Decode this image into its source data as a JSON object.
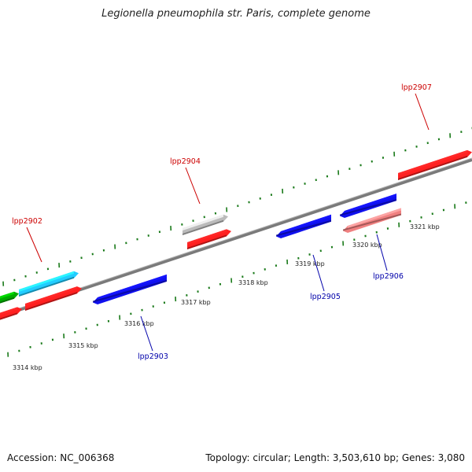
{
  "title": "Legionella pneumophila str. Paris, complete genome",
  "footer": {
    "accession": "Accession: NC_006368",
    "summary": "Topology: circular; Length: 3,503,610 bp; Genes: 3,080"
  },
  "colors": {
    "forward_label": "#cc0000",
    "reverse_label": "#0000aa",
    "tick": "#1a7a1a",
    "backbone": "#7a7a7a"
  },
  "scale_labels": [
    "3314 kbp",
    "3315 kbp",
    "3316 kbp",
    "3317 kbp",
    "3318 kbp",
    "3319 kbp",
    "3320 kbp",
    "3321 kbp"
  ],
  "gene_labels": [
    {
      "text": "lpp2902",
      "strand": "forward"
    },
    {
      "text": "lpp2904",
      "strand": "forward"
    },
    {
      "text": "lpp2907",
      "strand": "forward"
    },
    {
      "text": "lpp2903",
      "strand": "reverse"
    },
    {
      "text": "lpp2905",
      "strand": "reverse"
    },
    {
      "text": "lpp2906",
      "strand": "reverse"
    }
  ],
  "genes": [
    {
      "color": "#00aa00",
      "strand": "forward",
      "row": "outer"
    },
    {
      "color": "#22ccff",
      "strand": "forward",
      "row": "outer"
    },
    {
      "color": "#bbbbbb",
      "strand": "forward",
      "row": "outer"
    },
    {
      "color": "#ff2020",
      "strand": "forward",
      "row": "inner"
    },
    {
      "color": "#ff2020",
      "strand": "forward",
      "row": "inner"
    },
    {
      "color": "#ff2020",
      "strand": "forward",
      "row": "inner"
    },
    {
      "color": "#ff2020",
      "strand": "forward",
      "row": "inner"
    },
    {
      "color": "#1010ee",
      "strand": "reverse",
      "row": "inner"
    },
    {
      "color": "#1010ee",
      "strand": "reverse",
      "row": "inner"
    },
    {
      "color": "#1010ee",
      "strand": "reverse",
      "row": "inner"
    },
    {
      "color": "#f08080",
      "strand": "reverse",
      "row": "outer"
    }
  ]
}
